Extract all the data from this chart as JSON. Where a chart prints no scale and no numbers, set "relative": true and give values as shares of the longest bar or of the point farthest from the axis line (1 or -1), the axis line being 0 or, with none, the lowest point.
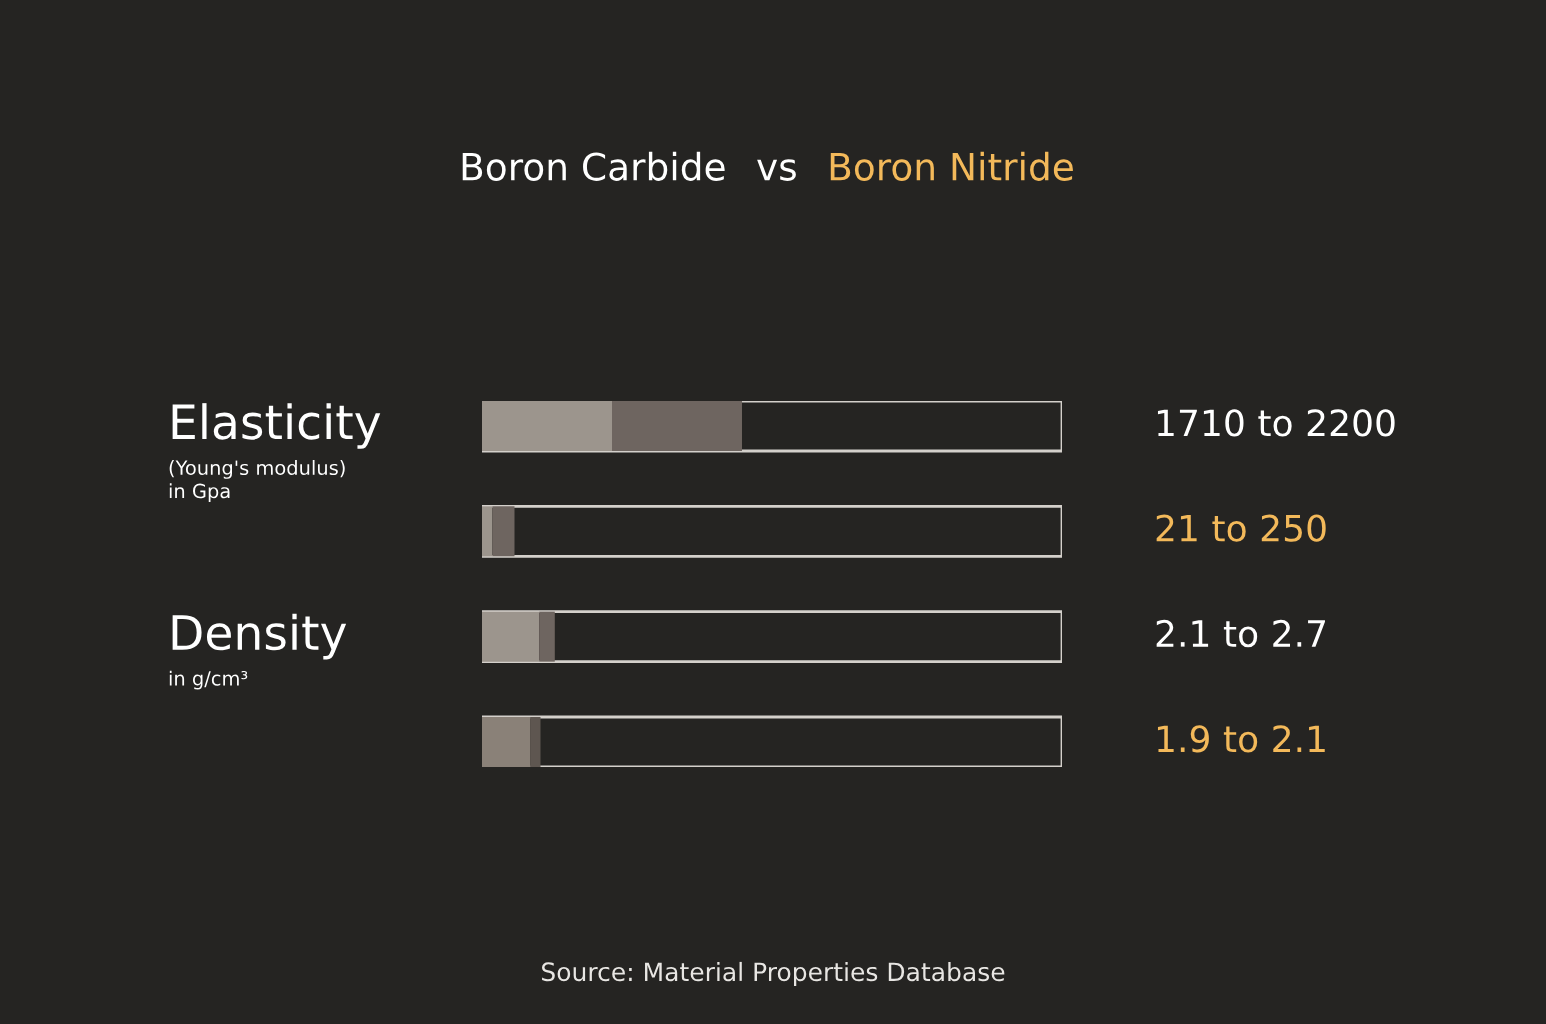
{
  "chart_data": [
    {
      "type": "other",
      "series": [
        {
          "name": "Boron Carbide",
          "color": "#ffffff"
        },
        {
          "name": "Boron Nitride",
          "color": "#f3b95a"
        }
      ],
      "annotations": [
        "vs",
        "Source: Material Properties Database"
      ]
    },
    {
      "type": "bar",
      "orientation": "horizontal",
      "stacked": true,
      "relative": true,
      "categories": [
        "Elasticity",
        null,
        "Density",
        null
      ],
      "annotations": [
        "1710 to 2200",
        "21 to 250",
        "2.1 to 2.7",
        "1.9 to 2.1",
        "(Young's modulus)\nin Gpa",
        "in g/cm³"
      ],
      "series": [
        {
          "colors": [
            "#9c958d",
            "#9c958d",
            "#9c958d",
            "#8a8178"
          ],
          "values": [
            0.5,
            0.04,
            0.22,
            0.185
          ]
        },
        {
          "colors": [
            "#6e6560",
            "#6e6560",
            "#6e6560",
            "#5e5650"
          ],
          "values": [
            0.5,
            0.085,
            0.06,
            0.04
          ]
        }
      ]
    }
  ]
}
